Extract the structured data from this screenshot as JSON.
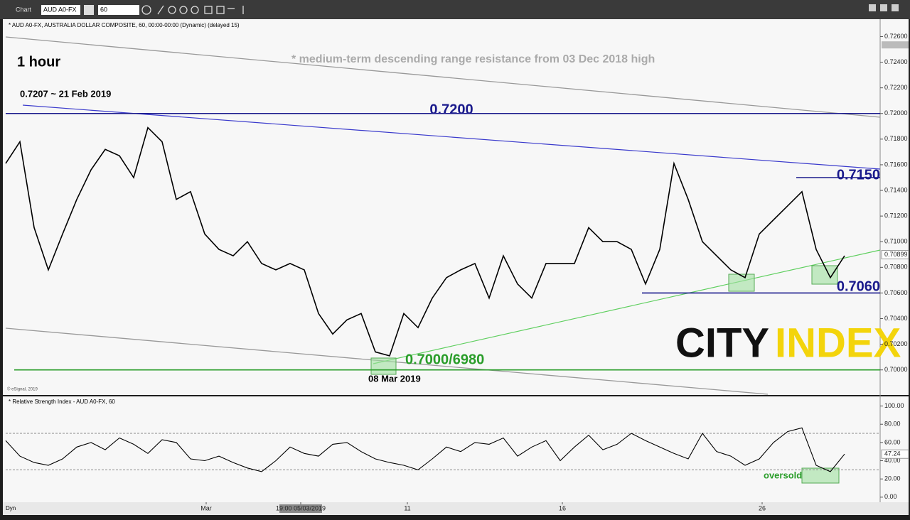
{
  "toolbar": {
    "title": "Chart",
    "symbol": "AUD A0-FX",
    "interval": "60",
    "mode": "Dyn"
  },
  "chart_data": [
    {
      "type": "line",
      "title": "* AUD A0-FX, AUSTRALIA DOLLAR COMPOSITE, 60, 00:00-00:00 (Dynamic) (delayed 15)",
      "timeframe": "1 hour",
      "note": "* medium-term descending range resistance from 03 Dec 2018 high",
      "high_label": "0.7207 ~ 21 Feb 2019",
      "low_label": "08 Mar 2019",
      "copyright": "© eSignal, 2019",
      "logo": [
        "CITY",
        "INDEX"
      ],
      "color": "#000000",
      "x": [
        0,
        2,
        4,
        6,
        8,
        10,
        12,
        14,
        16,
        18,
        20,
        22,
        24,
        26,
        28,
        30,
        32,
        34,
        36,
        38,
        40,
        42,
        44,
        46,
        48,
        50,
        52,
        54,
        56,
        58,
        60,
        62,
        64,
        66,
        68,
        70,
        72,
        74,
        76,
        78,
        80,
        82,
        84,
        86,
        88,
        90,
        92,
        94,
        96,
        98,
        100,
        102,
        104,
        106,
        108,
        110,
        112,
        114,
        116,
        118
      ],
      "values": [
        0.7161,
        0.7178,
        0.7111,
        0.7078,
        0.7106,
        0.7133,
        0.7156,
        0.7172,
        0.7167,
        0.715,
        0.7189,
        0.7178,
        0.7133,
        0.7139,
        0.7106,
        0.7094,
        0.7089,
        0.71,
        0.7083,
        0.7078,
        0.7083,
        0.7078,
        0.7044,
        0.7028,
        0.7039,
        0.7044,
        0.7014,
        0.7011,
        0.7044,
        0.7033,
        0.7056,
        0.7072,
        0.7078,
        0.7083,
        0.7056,
        0.7089,
        0.7067,
        0.7056,
        0.7083,
        0.7083,
        0.7083,
        0.7111,
        0.71,
        0.71,
        0.7094,
        0.7067,
        0.7094,
        0.7161,
        0.7133,
        0.71,
        0.7089,
        0.7078,
        0.7072,
        0.7106,
        0.7117,
        0.7128,
        0.7139,
        0.7094,
        0.7072,
        0.7089
      ],
      "xlim": [
        0,
        123
      ],
      "ylim": [
        0.6981,
        0.7273
      ],
      "yticks": [
        {
          "value": 0.726,
          "label": "0.72600"
        },
        {
          "value": 0.724,
          "label": "0.72400"
        },
        {
          "value": 0.722,
          "label": "0.72200"
        },
        {
          "value": 0.72,
          "label": "0.72000"
        },
        {
          "value": 0.718,
          "label": "0.71800"
        },
        {
          "value": 0.716,
          "label": "0.71600"
        },
        {
          "value": 0.714,
          "label": "0.71400"
        },
        {
          "value": 0.712,
          "label": "0.71200"
        },
        {
          "value": 0.71,
          "label": "0.71000"
        },
        {
          "value": 0.708,
          "label": "0.70800"
        },
        {
          "value": 0.706,
          "label": "0.70600"
        },
        {
          "value": 0.704,
          "label": "0.70400"
        },
        {
          "value": 0.702,
          "label": "0.70200"
        },
        {
          "value": 0.7,
          "label": "0.70000"
        }
      ],
      "marker_high": 0.72535,
      "last_price": {
        "value": 0.70899,
        "label": "0.70899"
      },
      "levels": [
        {
          "value": 0.72,
          "label": "0.7200",
          "color": "#1a1a8c"
        },
        {
          "value": 0.715,
          "label": "0.7150",
          "color": "#1a1a8c"
        },
        {
          "value": 0.706,
          "label": "0.7060",
          "color": "#1a1a8c"
        },
        {
          "value": 0.7,
          "label": "0.7000/6980",
          "color": "#2a9d2a"
        }
      ]
    },
    {
      "type": "line",
      "title": "* Relative Strength Index - AUD A0-FX, 60",
      "annotation": "oversold",
      "color": "#000000",
      "x": [
        0,
        2,
        4,
        6,
        8,
        10,
        12,
        14,
        16,
        18,
        20,
        22,
        24,
        26,
        28,
        30,
        32,
        34,
        36,
        38,
        40,
        42,
        44,
        46,
        48,
        50,
        52,
        54,
        56,
        58,
        60,
        62,
        64,
        66,
        68,
        70,
        72,
        74,
        76,
        78,
        80,
        82,
        84,
        86,
        88,
        90,
        92,
        94,
        96,
        98,
        100,
        102,
        104,
        106,
        108,
        110,
        112,
        114,
        116,
        118
      ],
      "values": [
        62,
        45,
        38,
        35,
        42,
        55,
        60,
        52,
        65,
        58,
        48,
        63,
        60,
        42,
        40,
        45,
        38,
        32,
        28,
        40,
        55,
        48,
        45,
        58,
        60,
        50,
        42,
        38,
        35,
        30,
        42,
        55,
        50,
        60,
        58,
        65,
        45,
        55,
        62,
        40,
        55,
        68,
        52,
        58,
        70,
        62,
        55,
        48,
        42,
        70,
        50,
        45,
        35,
        42,
        60,
        72,
        76,
        35,
        28,
        47.24
      ],
      "last": 47.24,
      "bands": [
        70,
        30
      ],
      "xlim": [
        0,
        123
      ],
      "ylim": [
        -4,
        109
      ],
      "yticks": [
        {
          "value": 100,
          "label": "100.00"
        },
        {
          "value": 80,
          "label": "80.00"
        },
        {
          "value": 60,
          "label": "60.00"
        },
        {
          "value": 40,
          "label": "40.00"
        },
        {
          "value": 20,
          "label": "20.00"
        },
        {
          "value": 0,
          "label": "0.00"
        }
      ],
      "xticks": [
        {
          "value": 28.2,
          "label": "Mar"
        },
        {
          "value": 41.5,
          "label": "19:00 05/03/2019"
        },
        {
          "value": 56.5,
          "label": "11"
        },
        {
          "value": 78.3,
          "label": "16"
        },
        {
          "value": 106.4,
          "label": "26"
        }
      ]
    }
  ]
}
